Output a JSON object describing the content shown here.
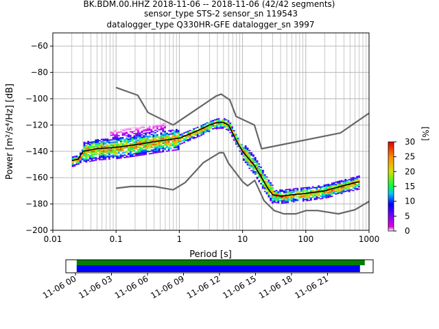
{
  "title_lines": [
    "BK.BDM.00.HHZ   2018-11-06 -- 2018-11-06  (42/42 segments)",
    "sensor_type STS-2 sensor_sn 119543",
    "datalogger_type Q330HR-GFE datalogger_sn 3997"
  ],
  "chart_data": [
    {
      "type": "heatmap",
      "xlabel": "Period [s]",
      "ylabel": "Power [m²/s⁴/Hz] [dB]",
      "xscale": "log",
      "xlim": [
        0.01,
        1000
      ],
      "ylim": [
        -200,
        -50
      ],
      "x_ticks": [
        0.01,
        0.1,
        1,
        10,
        100,
        1000
      ],
      "x_tick_labels": [
        "0.01",
        "0.1",
        "1",
        "10",
        "100",
        "1000"
      ],
      "y_ticks": [
        -200,
        -180,
        -160,
        -140,
        -120,
        -100,
        -80,
        -60
      ],
      "y_tick_labels": [
        "−200",
        "−180",
        "−160",
        "−140",
        "−120",
        "−100",
        "−80",
        "−60"
      ],
      "grid": true,
      "colorbar": {
        "label": "[%]",
        "range": [
          0,
          30
        ],
        "ticks": [
          0,
          5,
          10,
          15,
          20,
          25,
          30
        ],
        "tick_labels": [
          "0",
          "5",
          "10",
          "15",
          "20",
          "25",
          "30"
        ]
      },
      "series": [
        {
          "role": "noise-model-high",
          "color": "#666666",
          "x": [
            0.1,
            0.22,
            0.32,
            0.8,
            3.8,
            4.6,
            6.3,
            7.9,
            15.4,
            20,
            354,
            1000
          ],
          "y": [
            -91.5,
            -97.4,
            -110.5,
            -120,
            -98,
            -96.5,
            -101,
            -113.5,
            -120,
            -138,
            -126,
            -111
          ]
        },
        {
          "role": "noise-model-low",
          "color": "#666666",
          "x": [
            0.1,
            0.17,
            0.4,
            0.8,
            1.24,
            2.4,
            4.3,
            5.0,
            6.0,
            10,
            12,
            15.6,
            21.9,
            31.6,
            45,
            70,
            101,
            154,
            328,
            600,
            1000
          ],
          "y": [
            -168,
            -166.7,
            -166.7,
            -169.2,
            -163.7,
            -148.6,
            -141.1,
            -141.1,
            -149,
            -163,
            -166.2,
            -162.1,
            -177.5,
            -185,
            -187.5,
            -187.5,
            -185,
            -185,
            -187.5,
            -184.4,
            -178
          ]
        },
        {
          "role": "mode",
          "color": "#000000",
          "x": [
            0.02,
            0.025,
            0.03,
            0.05,
            0.1,
            0.2,
            0.5,
            1,
            2,
            3,
            4,
            5,
            6,
            8,
            10,
            15,
            20,
            25,
            30,
            40,
            60,
            100,
            200,
            400,
            700
          ],
          "y": [
            -147,
            -146,
            -140,
            -138,
            -137,
            -135,
            -132,
            -130,
            -124,
            -120,
            -118,
            -118,
            -120,
            -132,
            -140,
            -150,
            -160,
            -168,
            -173,
            -174,
            -173,
            -172,
            -170,
            -166,
            -163
          ]
        }
      ]
    },
    {
      "type": "timeline",
      "x_tick_labels": [
        "11-06 00",
        "11-06 03",
        "11-06 06",
        "11-06 09",
        "11-06 12",
        "11-06 15",
        "11-06 18",
        "11-06 21"
      ],
      "x_ticks_hours": [
        0,
        3,
        6,
        9,
        12,
        15,
        18,
        21
      ],
      "xlim_hours": [
        -0.8,
        24.8
      ],
      "bars": [
        {
          "role": "data-available",
          "color": "#008000",
          "start_hours": 0.1,
          "end_hours": 24.1
        },
        {
          "role": "psd-segments",
          "color": "#0000ff",
          "start_hours": 0.1,
          "end_hours": 23.7
        }
      ]
    }
  ]
}
